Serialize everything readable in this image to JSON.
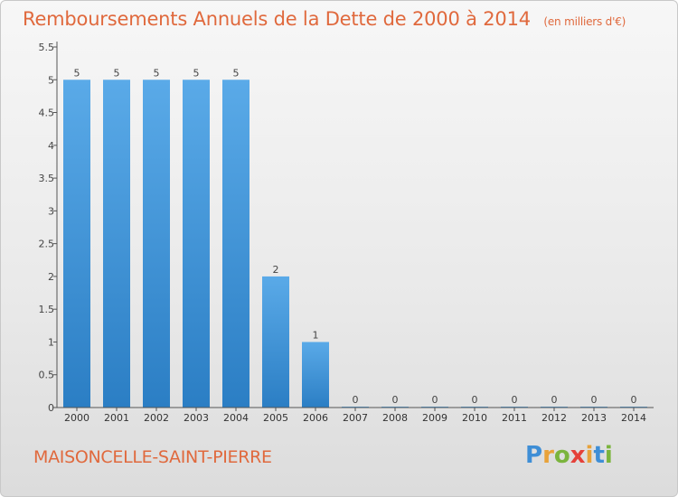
{
  "title": "Remboursements Annuels de la Dette de 2000 à 2014",
  "subtitle": "(en milliers d'€)",
  "location_name": "MAISONCELLE-SAINT-PIERRE",
  "logo": {
    "letters": [
      "P",
      "r",
      "o",
      "x",
      "i",
      "t",
      "i"
    ],
    "colors": [
      "#3e8ed6",
      "#e8a23a",
      "#7bb43d",
      "#e5413a",
      "#e8a23a",
      "#3e8ed6",
      "#7bb43d"
    ]
  },
  "colors": {
    "bar_top": "#5aaae8",
    "bar_bottom": "#2b7ec4",
    "title": "#e0693d"
  },
  "chart_data": {
    "type": "bar",
    "categories": [
      "2000",
      "2001",
      "2002",
      "2003",
      "2004",
      "2005",
      "2006",
      "2007",
      "2008",
      "2009",
      "2010",
      "2011",
      "2012",
      "2013",
      "2014"
    ],
    "values": [
      5,
      5,
      5,
      5,
      5,
      2,
      1,
      0,
      0,
      0,
      0,
      0,
      0,
      0,
      0
    ],
    "data_labels": [
      "5",
      "5",
      "5",
      "5",
      "5",
      "2",
      "1",
      "0",
      "0",
      "0",
      "0",
      "0",
      "0",
      "0",
      "0"
    ],
    "ylim": [
      0,
      5.5
    ],
    "yticks": [
      "0",
      "0.5",
      "1",
      "1.5",
      "2",
      "2.5",
      "3",
      "3.5",
      "4",
      "4.5",
      "5",
      "5.5"
    ],
    "xlabel": "",
    "ylabel": "",
    "grid": false,
    "legend": "none"
  }
}
